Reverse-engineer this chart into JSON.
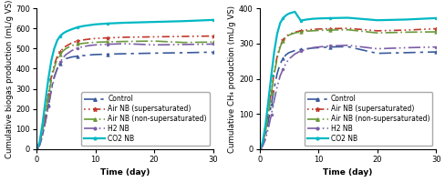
{
  "left_chart": {
    "ylabel": "Cumulative biogas production (mL/g VS)",
    "xlabel": "Time (day)",
    "ylim": [
      0,
      700
    ],
    "xlim": [
      0,
      30
    ],
    "yticks": [
      0,
      100,
      200,
      300,
      400,
      500,
      600,
      700
    ],
    "xticks": [
      0,
      10,
      20,
      30
    ],
    "series": {
      "Control": {
        "color": "#3a5a9c",
        "x": [
          0,
          0.5,
          1,
          1.5,
          2,
          2.5,
          3,
          3.5,
          4,
          4.5,
          5,
          6,
          7,
          8,
          9,
          10,
          12,
          15,
          20,
          25,
          30
        ],
        "y": [
          0,
          20,
          70,
          140,
          220,
          300,
          360,
          400,
          425,
          440,
          450,
          458,
          462,
          465,
          468,
          470,
          472,
          474,
          477,
          479,
          482
        ]
      },
      "Air NB (supersaturated)": {
        "color": "#c0392b",
        "x": [
          0,
          0.5,
          1,
          1.5,
          2,
          2.5,
          3,
          3.5,
          4,
          4.5,
          5,
          6,
          7,
          8,
          9,
          10,
          12,
          15,
          20,
          25,
          30
        ],
        "y": [
          0,
          25,
          90,
          180,
          270,
          360,
          420,
          460,
          485,
          500,
          512,
          528,
          538,
          543,
          547,
          550,
          553,
          556,
          558,
          560,
          562
        ]
      },
      "Air NB (non-supersaturated)": {
        "color": "#6a9a3a",
        "x": [
          0,
          0.5,
          1,
          1.5,
          2,
          2.5,
          3,
          3.5,
          4,
          4.5,
          5,
          6,
          7,
          8,
          9,
          10,
          12,
          15,
          20,
          25,
          30
        ],
        "y": [
          0,
          22,
          85,
          170,
          260,
          345,
          405,
          448,
          472,
          488,
          500,
          515,
          522,
          526,
          529,
          531,
          533,
          535,
          537,
          530,
          532
        ]
      },
      "H2 NB": {
        "color": "#7b5ea7",
        "x": [
          0,
          0.5,
          1,
          1.5,
          2,
          2.5,
          3,
          3.5,
          4,
          4.5,
          5,
          6,
          7,
          8,
          9,
          10,
          12,
          15,
          20,
          25,
          30
        ],
        "y": [
          0,
          18,
          65,
          135,
          210,
          290,
          355,
          400,
          432,
          455,
          470,
          490,
          503,
          510,
          515,
          518,
          521,
          524,
          518,
          520,
          522
        ]
      },
      "CO2 NB": {
        "color": "#00b8c4",
        "x": [
          0,
          0.5,
          1,
          1.5,
          2,
          2.5,
          3,
          3.5,
          4,
          4.5,
          5,
          6,
          7,
          8,
          9,
          10,
          12,
          15,
          20,
          25,
          30
        ],
        "y": [
          0,
          35,
          125,
          240,
          350,
          440,
          500,
          540,
          562,
          575,
          584,
          596,
          606,
          612,
          616,
          620,
          624,
          628,
          632,
          636,
          642
        ]
      }
    }
  },
  "right_chart": {
    "ylabel": "Cumulative CH₄ production (mL/g VS)",
    "xlabel": "Time (day)",
    "ylim": [
      0,
      400
    ],
    "xlim": [
      0,
      30
    ],
    "yticks": [
      0,
      100,
      200,
      300,
      400
    ],
    "xticks": [
      0,
      10,
      20,
      30
    ],
    "series": {
      "Control": {
        "color": "#3a5a9c",
        "x": [
          0,
          0.5,
          1,
          1.5,
          2,
          2.5,
          3,
          3.5,
          4,
          4.5,
          5,
          6,
          7,
          8,
          9,
          10,
          12,
          15,
          20,
          25,
          30
        ],
        "y": [
          0,
          10,
          38,
          80,
          128,
          175,
          215,
          242,
          258,
          268,
          274,
          280,
          283,
          285,
          287,
          288,
          290,
          291,
          272,
          274,
          276
        ]
      },
      "Air NB (supersaturated)": {
        "color": "#c0392b",
        "x": [
          0,
          0.5,
          1,
          1.5,
          2,
          2.5,
          3,
          3.5,
          4,
          4.5,
          5,
          6,
          7,
          8,
          9,
          10,
          12,
          15,
          20,
          25,
          30
        ],
        "y": [
          0,
          14,
          50,
          105,
          165,
          220,
          264,
          294,
          310,
          320,
          326,
          332,
          336,
          338,
          340,
          341,
          342,
          343,
          336,
          338,
          342
        ]
      },
      "Air NB (non-supersaturated)": {
        "color": "#6a9a3a",
        "x": [
          0,
          0.5,
          1,
          1.5,
          2,
          2.5,
          3,
          3.5,
          4,
          4.5,
          5,
          6,
          7,
          8,
          9,
          10,
          12,
          15,
          20,
          25,
          30
        ],
        "y": [
          0,
          13,
          48,
          100,
          160,
          215,
          258,
          290,
          308,
          318,
          324,
          330,
          333,
          335,
          336,
          337,
          338,
          339,
          330,
          332,
          333
        ]
      },
      "H2 NB": {
        "color": "#7b5ea7",
        "x": [
          0,
          0.5,
          1,
          1.5,
          2,
          2.5,
          3,
          3.5,
          4,
          4.5,
          5,
          6,
          7,
          8,
          9,
          10,
          12,
          15,
          20,
          25,
          30
        ],
        "y": [
          0,
          8,
          28,
          60,
          98,
          140,
          178,
          208,
          228,
          244,
          256,
          270,
          279,
          284,
          288,
          290,
          293,
          295,
          285,
          288,
          290
        ]
      },
      "CO2 NB": {
        "color": "#00b8c4",
        "x": [
          0,
          0.5,
          1,
          1.5,
          2,
          2.5,
          3,
          3.5,
          4,
          4.5,
          5,
          6,
          7,
          8,
          9,
          10,
          12,
          15,
          20,
          25,
          30
        ],
        "y": [
          0,
          18,
          68,
          138,
          210,
          278,
          328,
          358,
          372,
          380,
          385,
          390,
          365,
          368,
          370,
          371,
          372,
          373,
          366,
          368,
          372
        ]
      }
    }
  },
  "legend_order": [
    "Control",
    "Air NB (supersaturated)",
    "Air NB (non-supersaturated)",
    "H2 NB",
    "CO2 NB"
  ],
  "linestyles": {
    "Control": [
      8,
      3,
      2,
      3
    ],
    "Air NB (supersaturated)": [
      1,
      2,
      1,
      2,
      5,
      2
    ],
    "Air NB (non-supersaturated)": [
      8,
      2,
      1,
      2
    ],
    "H2 NB": [
      8,
      2,
      1,
      2,
      1,
      2
    ],
    "CO2 NB": "solid"
  },
  "markers": {
    "Control": {
      "shape": "^",
      "size": 2.5,
      "every": 4
    },
    "Air NB (supersaturated)": {
      "shape": "*",
      "size": 3.5,
      "every": 4
    },
    "Air NB (non-supersaturated)": {
      "shape": "^",
      "size": 2.5,
      "every": 4
    },
    "H2 NB": {
      "shape": "o",
      "size": 2.0,
      "every": 4
    },
    "CO2 NB": {
      "shape": "o",
      "size": 2.0,
      "every": 4
    }
  },
  "linewidths": {
    "Control": 1.2,
    "Air NB (supersaturated)": 1.2,
    "Air NB (non-supersaturated)": 1.2,
    "H2 NB": 1.2,
    "CO2 NB": 1.6
  },
  "background_color": "#ffffff",
  "fontsize_label": 6.5,
  "fontsize_tick": 6.0,
  "fontsize_legend": 5.5
}
